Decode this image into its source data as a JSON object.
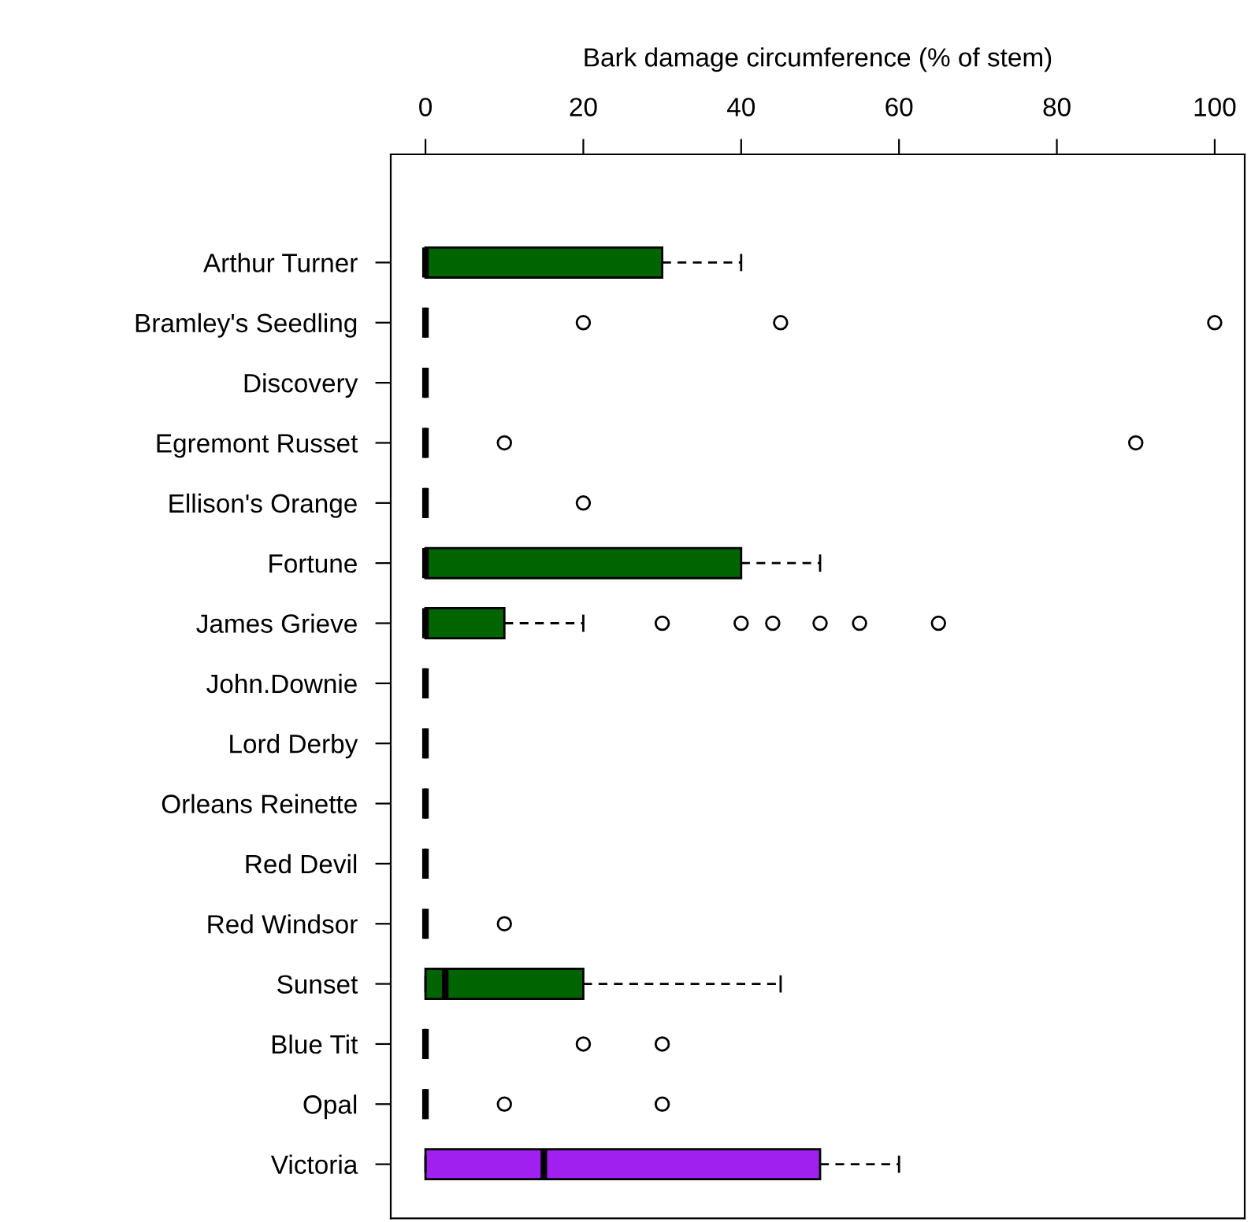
{
  "chart_data": {
    "type": "box",
    "orientation": "horizontal",
    "xlabel": "Bark damage circumference (% of stem)",
    "categories": [
      "Arthur Turner",
      "Bramley's Seedling",
      "Discovery",
      "Egremont Russet",
      "Ellison's Orange",
      "Fortune",
      "James Grieve",
      "John.Downie",
      "Lord Derby",
      "Orleans Reinette",
      "Red Devil",
      "Red Windsor",
      "Sunset",
      "Blue Tit",
      "Opal",
      "Victoria"
    ],
    "boxes": [
      {
        "low": 0,
        "q1": 0,
        "median": 0,
        "q3": 30,
        "high": 40
      },
      {
        "low": 0,
        "q1": 0,
        "median": 0,
        "q3": 0,
        "high": 0,
        "outliers": [
          20,
          45,
          100
        ]
      },
      {
        "low": 0,
        "q1": 0,
        "median": 0,
        "q3": 0,
        "high": 0
      },
      {
        "low": 0,
        "q1": 0,
        "median": 0,
        "q3": 0,
        "high": 0,
        "outliers": [
          10,
          90
        ]
      },
      {
        "low": 0,
        "q1": 0,
        "median": 0,
        "q3": 0,
        "high": 0,
        "outliers": [
          20
        ]
      },
      {
        "low": 0,
        "q1": 0,
        "median": 0,
        "q3": 40,
        "high": 50
      },
      {
        "low": 0,
        "q1": 0,
        "median": 0,
        "q3": 10,
        "high": 20,
        "outliers": [
          30,
          40,
          44,
          50,
          55,
          65
        ]
      },
      {
        "low": 0,
        "q1": 0,
        "median": 0,
        "q3": 0,
        "high": 0
      },
      {
        "low": 0,
        "q1": 0,
        "median": 0,
        "q3": 0,
        "high": 0
      },
      {
        "low": 0,
        "q1": 0,
        "median": 0,
        "q3": 0,
        "high": 0
      },
      {
        "low": 0,
        "q1": 0,
        "median": 0,
        "q3": 0,
        "high": 0
      },
      {
        "low": 0,
        "q1": 0,
        "median": 0,
        "q3": 0,
        "high": 0,
        "outliers": [
          10
        ]
      },
      {
        "low": 0,
        "q1": 0,
        "median": 2.5,
        "q3": 20,
        "high": 45
      },
      {
        "low": 0,
        "q1": 0,
        "median": 0,
        "q3": 0,
        "high": 0,
        "outliers": [
          20,
          30
        ]
      },
      {
        "low": 0,
        "q1": 0,
        "median": 0,
        "q3": 0,
        "high": 0,
        "outliers": [
          10,
          30
        ]
      },
      {
        "low": 0,
        "q1": 0,
        "median": 15,
        "q3": 50,
        "high": 60
      }
    ],
    "colors": [
      "#006400",
      "#000000",
      "#000000",
      "#000000",
      "#000000",
      "#006400",
      "#006400",
      "#000000",
      "#000000",
      "#000000",
      "#000000",
      "#000000",
      "#006400",
      "#000000",
      "#000000",
      "#a020f0"
    ],
    "xlim": [
      -4.4,
      103.8
    ],
    "xticks": [
      0,
      20,
      40,
      60,
      80,
      100
    ]
  }
}
